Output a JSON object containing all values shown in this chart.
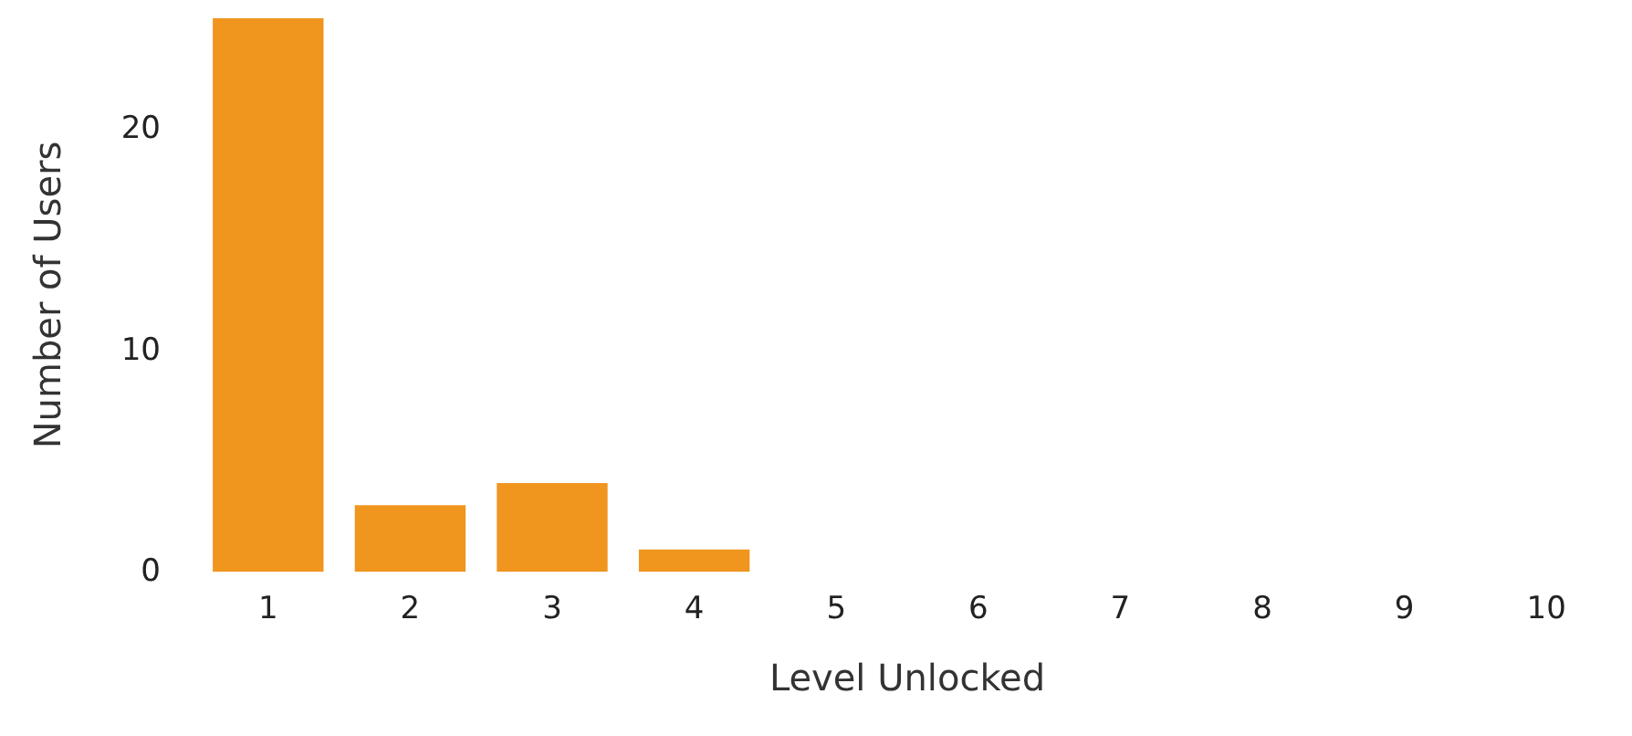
{
  "chart_data": {
    "type": "bar",
    "xlabel": "Level Unlocked",
    "ylabel": "Number of Users",
    "categories": [
      "1",
      "2",
      "3",
      "4",
      "5",
      "6",
      "7",
      "8",
      "9",
      "10"
    ],
    "values": [
      25,
      3,
      4,
      1,
      0,
      0,
      0,
      0,
      0,
      0
    ],
    "color": "#f0951e",
    "ylim": [
      0,
      25
    ],
    "yticks": [
      0,
      10,
      20
    ],
    "grid": false
  }
}
